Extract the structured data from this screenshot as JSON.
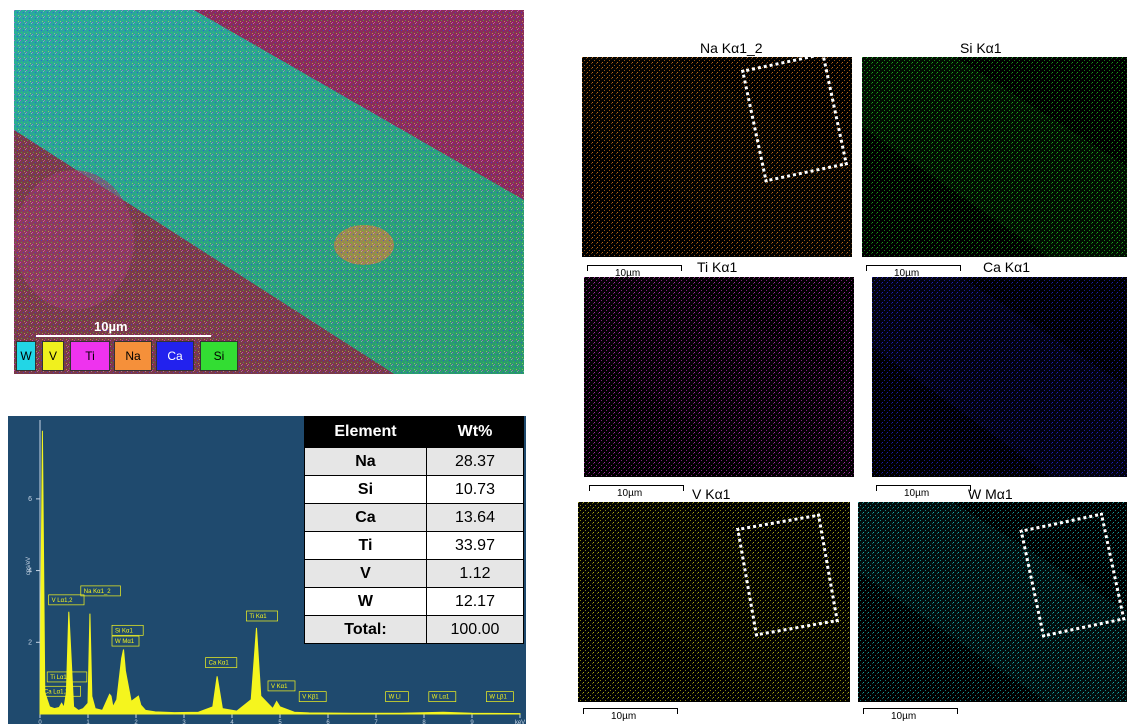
{
  "composite": {
    "scale_label": "10µm",
    "legend": [
      {
        "label": "W",
        "color": "#22d6e6"
      },
      {
        "label": "V",
        "color": "#f0f01e"
      },
      {
        "label": "Ti",
        "color": "#ee33ee"
      },
      {
        "label": "Na",
        "color": "#f5903a"
      },
      {
        "label": "Ca",
        "color": "#2222ee"
      },
      {
        "label": "Si",
        "color": "#33dd33"
      }
    ]
  },
  "maps": [
    {
      "title": "Na Kα1_2",
      "color": "#f08a1e",
      "scale": "10µm"
    },
    {
      "title": "Si Kα1",
      "color": "#22cc22",
      "scale": "10µm"
    },
    {
      "title": "Ti Kα1",
      "color": "#d433d4",
      "scale": "10µm"
    },
    {
      "title": "Ca Kα1",
      "color": "#2626e0",
      "scale": "10µm"
    },
    {
      "title": "V Kα1",
      "color": "#d8d81c",
      "scale": "10µm"
    },
    {
      "title": "W Mα1",
      "color": "#22c8c8",
      "scale": "10µm"
    }
  ],
  "table": {
    "headers": [
      "Element",
      "Wt%"
    ],
    "rows": [
      [
        "Na",
        "28.37"
      ],
      [
        "Si",
        "10.73"
      ],
      [
        "Ca",
        "13.64"
      ],
      [
        "Ti",
        "33.97"
      ],
      [
        "V",
        "1.12"
      ],
      [
        "W",
        "12.17"
      ],
      [
        "Total:",
        "100.00"
      ]
    ]
  },
  "chart_data": {
    "type": "line",
    "xlabel": "keV",
    "ylabel": "cps/eV",
    "xlim": [
      0,
      10
    ],
    "ylim": [
      0,
      8.2
    ],
    "xticks": [
      "0",
      "1",
      "2",
      "3",
      "4",
      "5",
      "6",
      "7",
      "8",
      "9",
      "keV"
    ],
    "yticks": [
      "2",
      "4",
      "6"
    ],
    "series": [
      {
        "x": [
          0.0,
          0.05,
          0.1,
          0.2,
          0.3,
          0.4,
          0.45,
          0.5,
          0.55,
          0.6,
          0.7,
          0.8,
          0.9,
          1.0,
          1.04,
          1.08,
          1.15,
          1.3,
          1.45,
          1.48,
          1.52,
          1.6,
          1.7,
          1.74,
          1.78,
          1.9,
          2.05,
          2.1,
          2.2,
          2.4,
          2.8,
          3.3,
          3.6,
          3.69,
          3.8,
          4.1,
          4.4,
          4.51,
          4.6,
          4.85,
          4.93,
          5.0,
          5.3,
          5.6,
          6.5,
          7.5,
          8.4,
          9.0,
          10.0
        ],
        "y": [
          0.0,
          7.9,
          0.6,
          0.2,
          0.15,
          0.18,
          0.3,
          0.18,
          0.6,
          2.85,
          0.2,
          0.1,
          0.15,
          0.3,
          2.8,
          0.5,
          0.15,
          0.1,
          0.55,
          0.5,
          0.2,
          0.4,
          1.55,
          1.8,
          1.2,
          0.35,
          0.5,
          0.25,
          0.1,
          0.06,
          0.04,
          0.05,
          0.2,
          1.05,
          0.15,
          0.08,
          0.4,
          2.4,
          0.5,
          0.15,
          0.35,
          0.2,
          0.05,
          0.03,
          0.02,
          0.02,
          0.05,
          0.02,
          0.01
        ]
      }
    ],
    "annotations": [
      "Ca Lα1,2",
      "Ti Lα1,2",
      "V Lα1,2",
      "Na Kα1_2",
      "Si Kα1",
      "W Mα1",
      "Ca Kα1",
      "Ti Kα1",
      "V Kα1",
      "V Kβ1",
      "W Ll",
      "W Lα1",
      "W Lβ1"
    ]
  }
}
